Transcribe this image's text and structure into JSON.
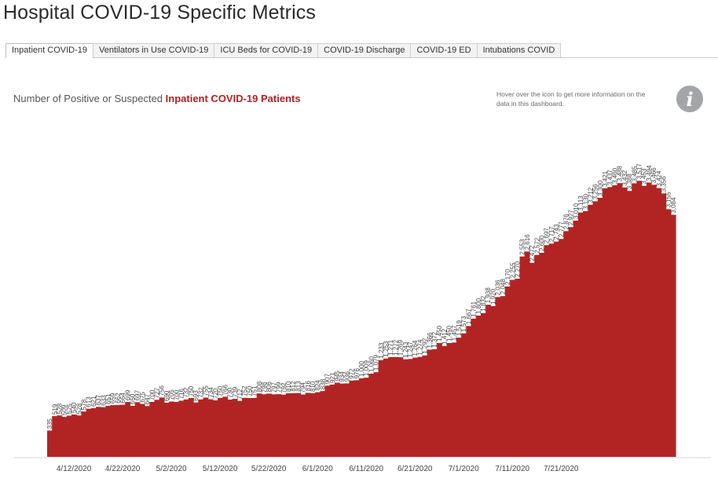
{
  "page": {
    "title": "Hospital COVID-19 Specific Metrics",
    "tabs": [
      "Inpatient COVID-19",
      "Ventilators in Use COVID-19",
      "ICU Beds for COVID-19",
      "COVID-19 Discharge",
      "COVID-19 ED",
      "Intubations COVID"
    ],
    "active_tab": 0,
    "subtitle_prefix": "Number of Positive or Suspected ",
    "subtitle_highlight": "Inpatient COVID-19 Patients",
    "hover_note": "Hover over the icon to get more information on the data in this dashboard.",
    "info_icon": "i"
  },
  "colors": {
    "bar": "#b22424",
    "highlight": "#b22222",
    "info_bg": "#a3a5a8"
  },
  "chart_data": {
    "type": "area",
    "x_start": "4/7/2020",
    "x_end": "7/20/2020",
    "x_ticks": [
      "4/12/2020",
      "4/22/2020",
      "5/2/2020",
      "5/12/2020",
      "5/22/2020",
      "6/1/2020",
      "6/11/2020",
      "6/21/2020",
      "7/1/2020",
      "7/11/2020",
      "7/21/2020"
    ],
    "ylim": [
      0,
      4000
    ],
    "values": [
      335,
      519,
      528,
      509,
      525,
      540,
      528,
      578,
      613,
      621,
      637,
      633,
      651,
      659,
      662,
      664,
      699,
      650,
      697,
      675,
      647,
      700,
      727,
      756,
      690,
      705,
      700,
      716,
      732,
      750,
      693,
      732,
      755,
      734,
      720,
      750,
      766,
      730,
      739,
      712,
      752,
      750,
      751,
      808,
      798,
      806,
      797,
      799,
      792,
      810,
      812,
      813,
      794,
      816,
      810,
      824,
      838,
      907,
      921,
      945,
      934,
      936,
      972,
      976,
      1000,
      1009,
      1060,
      1079,
      1233,
      1253,
      1271,
      1272,
      1269,
      1243,
      1247,
      1264,
      1274,
      1292,
      1366,
      1372,
      1450,
      1412,
      1450,
      1457,
      1519,
      1573,
      1667,
      1761,
      1800,
      1832,
      1938,
      1920,
      2036,
      2048,
      2170,
      2255,
      2270,
      2553,
      2616,
      2472,
      2572,
      2600,
      2697,
      2717,
      2743,
      2777,
      2876,
      2927,
      3010,
      3113,
      3130,
      3212,
      3256,
      3300,
      3421,
      3437,
      3460,
      3488,
      3432,
      3388,
      3485,
      3517,
      3453,
      3494,
      3466,
      3424,
      3356,
      3155,
      3084
    ]
  }
}
